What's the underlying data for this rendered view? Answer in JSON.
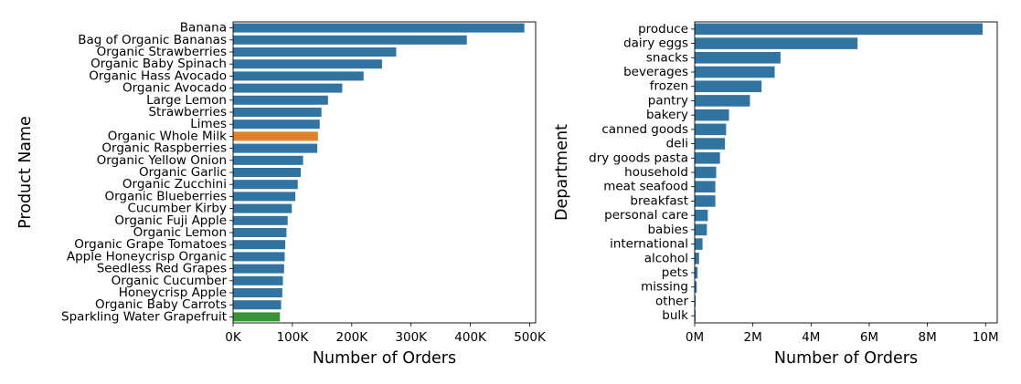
{
  "colors": {
    "default": "#3274a1",
    "highlight": "#e1812c",
    "secondary": "#3a923a",
    "axis": "#000000",
    "background": "#ffffff"
  },
  "chart_data": [
    {
      "type": "bar",
      "orientation": "horizontal",
      "title": "",
      "xlabel": "Number of Orders",
      "ylabel": "Product Name",
      "xlim": [
        0,
        510000
      ],
      "xticks": [
        0,
        100000,
        200000,
        300000,
        400000,
        500000
      ],
      "xtick_labels": [
        "0K",
        "100K",
        "200K",
        "300K",
        "400K",
        "500K"
      ],
      "grid": false,
      "categories": [
        "Banana",
        "Bag of Organic Bananas",
        "Organic Strawberries",
        "Organic Baby Spinach",
        "Organic Hass Avocado",
        "Organic Avocado",
        "Large Lemon",
        "Strawberries",
        "Limes",
        "Organic Whole Milk",
        "Organic Raspberries",
        "Organic Yellow Onion",
        "Organic Garlic",
        "Organic Zucchini",
        "Organic Blueberries",
        "Cucumber Kirby",
        "Organic Fuji Apple",
        "Organic Lemon",
        "Organic Grape Tomatoes",
        "Apple Honeycrisp Organic",
        "Seedless Red Grapes",
        "Organic Cucumber",
        "Honeycrisp Apple",
        "Organic Baby Carrots",
        "Sparkling Water Grapefruit"
      ],
      "values": [
        491000,
        394000,
        275000,
        251000,
        220000,
        184000,
        160000,
        149000,
        146000,
        143000,
        142000,
        118000,
        114000,
        109000,
        105000,
        99000,
        92000,
        90000,
        88000,
        87000,
        86000,
        84000,
        83000,
        81000,
        79000
      ],
      "bar_colors": [
        "default",
        "default",
        "default",
        "default",
        "default",
        "default",
        "default",
        "default",
        "default",
        "highlight",
        "default",
        "default",
        "default",
        "default",
        "default",
        "default",
        "default",
        "default",
        "default",
        "default",
        "default",
        "default",
        "default",
        "default",
        "secondary"
      ]
    },
    {
      "type": "bar",
      "orientation": "horizontal",
      "title": "",
      "xlabel": "Number of Orders",
      "ylabel": "Department",
      "xlim": [
        0,
        10400000
      ],
      "xticks": [
        0,
        2000000,
        4000000,
        6000000,
        8000000,
        10000000
      ],
      "xtick_labels": [
        "0M",
        "2M",
        "4M",
        "6M",
        "8M",
        "10M"
      ],
      "grid": false,
      "categories": [
        "produce",
        "dairy eggs",
        "snacks",
        "beverages",
        "frozen",
        "pantry",
        "bakery",
        "canned goods",
        "deli",
        "dry goods pasta",
        "household",
        "meat seafood",
        "breakfast",
        "personal care",
        "babies",
        "international",
        "alcohol",
        "pets",
        "missing",
        "other",
        "bulk"
      ],
      "values": [
        9900000,
        5600000,
        2950000,
        2750000,
        2300000,
        1900000,
        1180000,
        1080000,
        1040000,
        870000,
        740000,
        710000,
        710000,
        450000,
        420000,
        270000,
        150000,
        100000,
        70000,
        36000,
        34000
      ],
      "bar_colors": [
        "default",
        "default",
        "default",
        "default",
        "default",
        "default",
        "default",
        "default",
        "default",
        "default",
        "default",
        "default",
        "default",
        "default",
        "default",
        "default",
        "default",
        "default",
        "default",
        "default",
        "default"
      ]
    }
  ]
}
